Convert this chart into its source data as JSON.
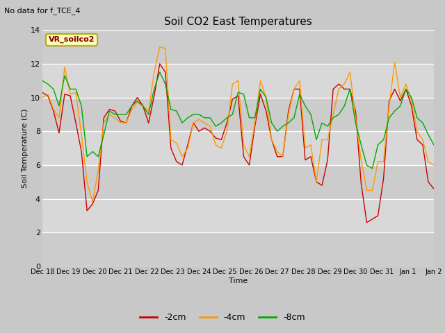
{
  "title": "Soil CO2 East Temperatures",
  "no_data_text": "No data for f_TCE_4",
  "ylabel": "Soil Temperature (C)",
  "xlabel": "Time",
  "legend_label": "VR_soilco2",
  "ylim": [
    0,
    14
  ],
  "series_labels": [
    "-2cm",
    "-4cm",
    "-8cm"
  ],
  "series_colors": [
    "#cc0000",
    "#ff9900",
    "#00aa00"
  ],
  "fig_bg_color": "#c8c8c8",
  "plot_bg_color": "#e0e0e0",
  "stripe_color_dark": "#cccccc",
  "stripe_color_light": "#e0e0e0",
  "x_tick_labels": [
    "Dec 18",
    "Dec 19",
    "Dec 20",
    "Dec 21",
    "Dec 22",
    "Dec 23",
    "Dec 24",
    "Dec 25",
    "Dec 26",
    "Dec 27",
    "Dec 28",
    "Dec 29",
    "Dec 30",
    "Dec 31",
    "Jan 1",
    "Jan 2"
  ],
  "data_2cm": [
    10.3,
    10.1,
    9.2,
    7.9,
    10.2,
    10.1,
    8.5,
    6.8,
    3.3,
    3.7,
    4.5,
    8.8,
    9.3,
    9.2,
    8.6,
    8.5,
    9.5,
    10.0,
    9.5,
    8.5,
    10.1,
    12.0,
    11.5,
    7.0,
    6.2,
    6.0,
    7.2,
    8.5,
    8.0,
    8.2,
    8.0,
    7.6,
    7.5,
    8.5,
    9.9,
    10.1,
    6.5,
    6.0,
    8.3,
    10.2,
    9.2,
    7.5,
    6.5,
    6.5,
    9.2,
    10.5,
    10.5,
    6.3,
    6.5,
    5.0,
    4.8,
    6.3,
    10.5,
    10.8,
    10.5,
    10.5,
    9.2,
    4.9,
    2.6,
    2.8,
    3.0,
    5.2,
    9.8,
    10.5,
    9.8,
    10.5,
    9.5,
    7.5,
    7.2,
    5.0,
    4.6
  ],
  "data_4cm": [
    10.0,
    10.2,
    9.3,
    8.8,
    11.8,
    10.2,
    10.3,
    7.8,
    5.0,
    3.8,
    5.7,
    8.5,
    9.0,
    8.8,
    8.5,
    8.5,
    9.3,
    9.7,
    9.5,
    9.2,
    11.5,
    13.0,
    12.9,
    7.5,
    7.3,
    6.5,
    7.0,
    8.5,
    8.7,
    8.5,
    8.3,
    7.2,
    7.0,
    8.0,
    10.8,
    11.0,
    7.2,
    6.5,
    8.5,
    11.0,
    10.0,
    7.5,
    6.8,
    6.5,
    9.0,
    10.5,
    11.0,
    7.0,
    7.2,
    5.0,
    7.5,
    7.5,
    9.0,
    10.5,
    10.8,
    11.5,
    8.8,
    6.3,
    4.5,
    4.5,
    6.2,
    6.2,
    9.5,
    12.1,
    10.0,
    10.8,
    9.8,
    8.0,
    7.5,
    6.2,
    6.0
  ],
  "data_8cm": [
    11.0,
    10.8,
    10.5,
    9.5,
    11.3,
    10.5,
    10.5,
    9.5,
    6.5,
    6.8,
    6.5,
    7.8,
    9.2,
    9.0,
    9.0,
    9.0,
    9.5,
    9.8,
    9.5,
    9.0,
    10.5,
    11.5,
    10.8,
    9.3,
    9.2,
    8.5,
    8.8,
    9.0,
    9.0,
    8.8,
    8.8,
    8.3,
    8.5,
    8.8,
    9.0,
    10.3,
    10.2,
    8.8,
    8.8,
    10.5,
    10.0,
    8.5,
    8.0,
    8.3,
    8.5,
    8.8,
    10.2,
    9.5,
    9.0,
    7.5,
    8.5,
    8.3,
    8.8,
    9.0,
    9.5,
    10.5,
    8.5,
    7.2,
    6.0,
    5.8,
    7.2,
    7.5,
    8.8,
    9.2,
    9.5,
    10.5,
    10.0,
    8.8,
    8.5,
    7.8,
    7.2
  ]
}
